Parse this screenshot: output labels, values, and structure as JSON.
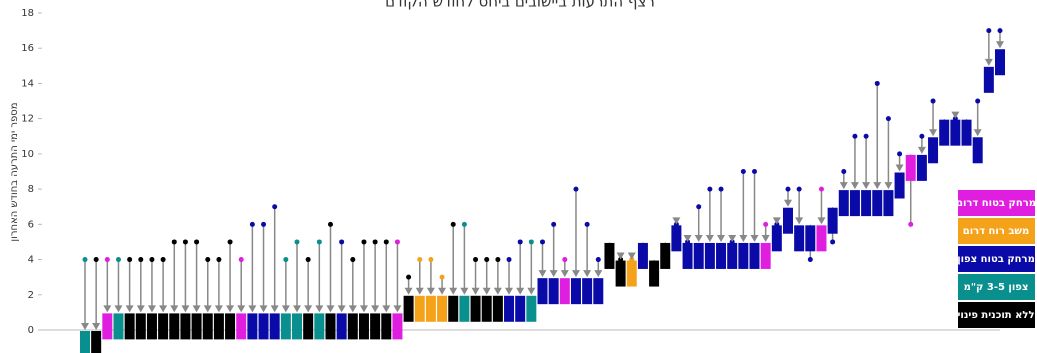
{
  "chart_data": {
    "type": "arrow-dumbbell",
    "title": "רצף התרעות ביישובים ביחס לחודש הקודם",
    "y_label": "מספר ימי התרעה בחודש האחרון",
    "ylim": [
      0,
      18
    ],
    "yticks": [
      0,
      2,
      4,
      6,
      8,
      10,
      12,
      14,
      16,
      18
    ],
    "legend": [
      {
        "label": "מרחק בטוח דרום",
        "color": "#e01ee0"
      },
      {
        "label": "משב רוח דרום",
        "color": "#f5a21b"
      },
      {
        "label": "מרחק בטוח צפון",
        "color": "#0a0aa8"
      },
      {
        "label": "צפון 3-5 ק\"מ",
        "color": "#0a8f8f"
      },
      {
        "label": "ללא תוכנית פינוי",
        "color": "#000000"
      }
    ],
    "start_values": [
      4,
      4,
      4,
      4,
      4,
      4,
      4,
      4,
      5,
      5,
      5,
      4,
      4,
      5,
      4,
      6,
      6,
      7,
      4,
      5,
      4,
      5,
      6,
      5,
      4,
      5,
      5,
      5,
      5,
      3,
      4,
      4,
      3,
      6,
      6,
      4,
      4,
      4,
      4,
      5,
      5,
      5,
      6,
      4,
      8,
      6,
      4,
      4,
      4,
      4,
      4,
      3,
      4,
      6,
      5,
      7,
      8,
      8,
      5,
      9,
      9,
      6,
      6,
      8,
      8,
      4,
      8,
      5,
      9,
      11,
      11,
      14,
      12,
      10,
      6,
      11,
      13,
      11,
      12,
      11,
      13,
      17,
      17
    ],
    "end_values": [
      0,
      0,
      1,
      1,
      1,
      1,
      1,
      1,
      1,
      1,
      1,
      1,
      1,
      1,
      1,
      1,
      1,
      1,
      1,
      1,
      1,
      1,
      1,
      1,
      1,
      1,
      1,
      1,
      1,
      2,
      2,
      2,
      2,
      2,
      2,
      2,
      2,
      2,
      2,
      2,
      2,
      3,
      3,
      3,
      3,
      3,
      3,
      5,
      4,
      4,
      5,
      4,
      5,
      6,
      5,
      5,
      5,
      5,
      5,
      5,
      5,
      5,
      6,
      7,
      6,
      6,
      6,
      7,
      8,
      8,
      8,
      8,
      8,
      9,
      10,
      10,
      11,
      12,
      12,
      12,
      11,
      15,
      16
    ],
    "point_colors": [
      "#0a8f8f",
      "#000000",
      "#e01ee0",
      "#0a8f8f",
      "#000000",
      "#000000",
      "#000000",
      "#000000",
      "#000000",
      "#000000",
      "#000000",
      "#000000",
      "#000000",
      "#000000",
      "#e01ee0",
      "#0a0aa8",
      "#0a0aa8",
      "#0a0aa8",
      "#0a8f8f",
      "#0a8f8f",
      "#000000",
      "#0a8f8f",
      "#000000",
      "#0a0aa8",
      "#000000",
      "#000000",
      "#000000",
      "#000000",
      "#e01ee0",
      "#000000",
      "#f5a21b",
      "#f5a21b",
      "#f5a21b",
      "#000000",
      "#0a8f8f",
      "#000000",
      "#000000",
      "#000000",
      "#0a0aa8",
      "#0a0aa8",
      "#0a8f8f",
      "#0a0aa8",
      "#0a0aa8",
      "#e01ee0",
      "#0a0aa8",
      "#0a0aa8",
      "#0a0aa8",
      "#000000",
      "#000000",
      "#f5a21b",
      "#0a0aa8",
      "#000000",
      "#000000",
      "#0a0aa8",
      "#0a0aa8",
      "#0a0aa8",
      "#0a0aa8",
      "#0a0aa8",
      "#0a0aa8",
      "#0a0aa8",
      "#0a0aa8",
      "#e01ee0",
      "#0a0aa8",
      "#0a0aa8",
      "#0a0aa8",
      "#0a0aa8",
      "#e01ee0",
      "#0a0aa8",
      "#0a0aa8",
      "#0a0aa8",
      "#0a0aa8",
      "#0a0aa8",
      "#0a0aa8",
      "#0a0aa8",
      "#e01ee0",
      "#0a0aa8",
      "#0a0aa8",
      "#0a0aa8",
      "#0a0aa8",
      "#0a0aa8",
      "#0a0aa8",
      "#0a0aa8",
      "#0a0aa8"
    ],
    "grid": false
  }
}
